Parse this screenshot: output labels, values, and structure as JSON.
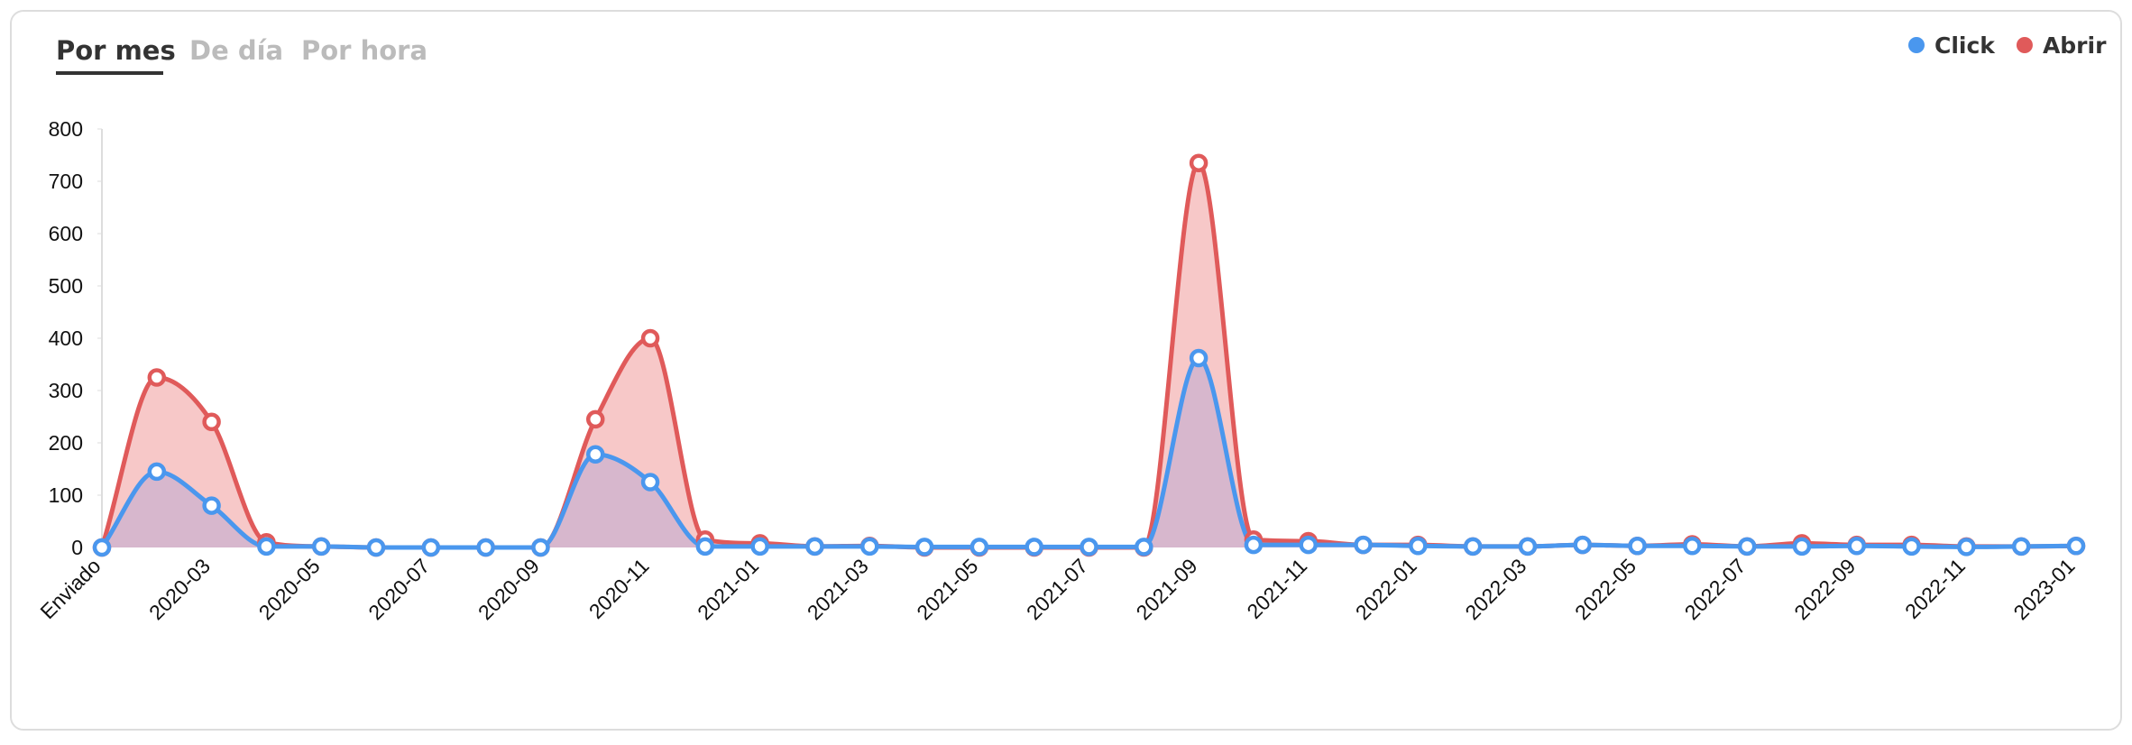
{
  "tabs": [
    "Por mes",
    "De día",
    "Por hora"
  ],
  "chart_data": {
    "type": "line",
    "categories": [
      "Enviado",
      null,
      "2020-03",
      null,
      "2020-05",
      null,
      "2020-07",
      null,
      "2020-09",
      null,
      "2020-11",
      null,
      "2021-01",
      null,
      "2021-03",
      null,
      "2021-05",
      null,
      "2021-07",
      null,
      "2021-09",
      null,
      "2021-11",
      null,
      "2022-01",
      null,
      "2022-03",
      null,
      "2022-05",
      null,
      "2022-07",
      null,
      "2022-09",
      null,
      "2022-11",
      null,
      "2023-01"
    ],
    "series": [
      {
        "name": "Click",
        "color": "#4a97ee",
        "values": [
          0,
          145,
          80,
          2,
          2,
          0,
          0,
          0,
          0,
          178,
          125,
          2,
          2,
          2,
          2,
          1,
          1,
          1,
          1,
          1,
          362,
          5,
          5,
          5,
          3,
          2,
          2,
          5,
          3,
          3,
          2,
          2,
          3,
          2,
          1,
          2,
          3
        ]
      },
      {
        "name": "Abrir",
        "color": "#e05a5a",
        "values": [
          0,
          325,
          240,
          10,
          2,
          0,
          0,
          0,
          0,
          245,
          400,
          15,
          8,
          2,
          3,
          0,
          0,
          0,
          0,
          0,
          735,
          15,
          12,
          5,
          5,
          2,
          2,
          5,
          3,
          6,
          2,
          8,
          5,
          5,
          2,
          2,
          3
        ]
      }
    ],
    "ylim": [
      0,
      800
    ],
    "yticks": [
      0,
      100,
      200,
      300,
      400,
      500,
      600,
      700,
      800
    ],
    "legend": "top-right"
  }
}
